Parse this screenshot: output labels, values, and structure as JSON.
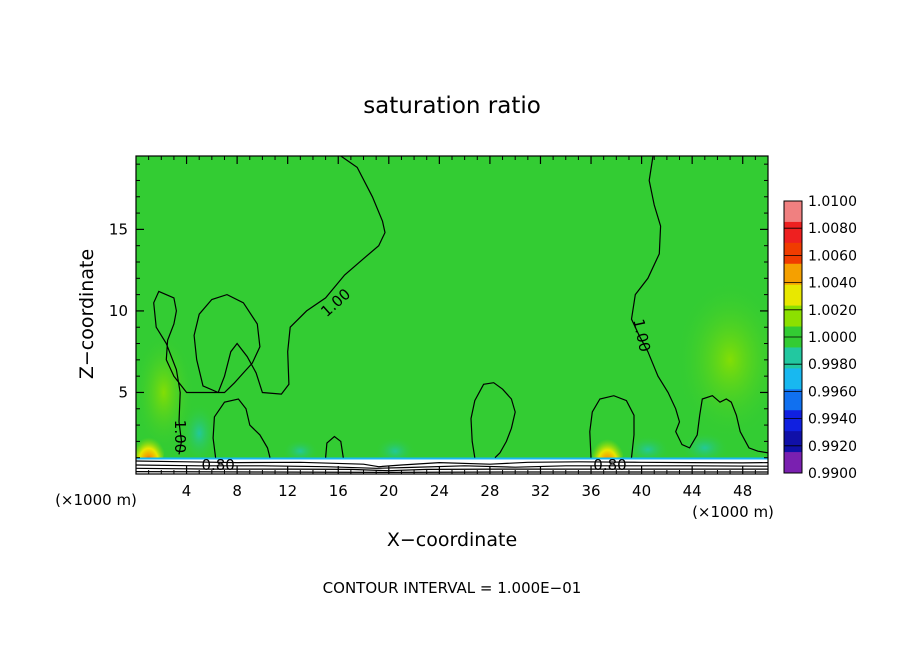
{
  "chart_data": {
    "type": "heatmap",
    "title": "saturation ratio",
    "xlabel": "X−coordinate",
    "ylabel": "Z−coordinate",
    "x_unit_left": "(×1000 m)",
    "x_unit_right": "(×1000 m)",
    "footer": "CONTOUR INTERVAL = 1.000E−01",
    "xlim": [
      0,
      50
    ],
    "ylim": [
      0,
      19.5
    ],
    "x_ticks": [
      4,
      8,
      12,
      16,
      20,
      24,
      28,
      32,
      36,
      40,
      44,
      48
    ],
    "x_tick_labels": [
      "4",
      "8",
      "12",
      "16",
      "20",
      "24",
      "28",
      "32",
      "36",
      "40",
      "44",
      "48"
    ],
    "y_ticks": [
      5,
      10,
      15
    ],
    "y_tick_labels": [
      "5",
      "10",
      "15"
    ],
    "background_value": 1.0,
    "colorbar": {
      "levels": [
        "1.0100",
        "1.0080",
        "1.0060",
        "1.0040",
        "1.0020",
        "1.0000",
        "0.9980",
        "0.9960",
        "0.9940",
        "0.9920",
        "0.9900"
      ],
      "colors": [
        "#f08080",
        "#ee2020",
        "#f03c00",
        "#f5a000",
        "#e8e800",
        "#8ce000",
        "#33cc33",
        "#22c8a0",
        "#18b8f0",
        "#1070f0",
        "#1020e0",
        "#1010a8",
        "#7a20b0"
      ]
    },
    "contours": [
      {
        "level": 1.0,
        "label": "1.00",
        "points": [
          [
            16.2,
            19.5
          ],
          [
            17.5,
            18.8
          ],
          [
            18.7,
            17.0
          ],
          [
            19.5,
            15.5
          ],
          [
            19.7,
            14.8
          ],
          [
            19.2,
            14.0
          ],
          [
            18.0,
            13.2
          ],
          [
            16.5,
            12.2
          ],
          [
            15.0,
            10.8
          ],
          [
            13.5,
            10.0
          ],
          [
            12.2,
            9.0
          ],
          [
            12.0,
            7.5
          ],
          [
            12.1,
            5.5
          ],
          [
            11.5,
            4.9
          ],
          [
            10.0,
            5.0
          ],
          [
            9.5,
            6.2
          ],
          [
            8.8,
            7.2
          ],
          [
            8.0,
            8.0
          ],
          [
            7.5,
            7.5
          ],
          [
            7.0,
            6.0
          ],
          [
            6.5,
            5.0
          ],
          [
            5.3,
            5.4
          ],
          [
            4.8,
            7.0
          ],
          [
            4.6,
            8.5
          ],
          [
            5.0,
            9.8
          ],
          [
            6.0,
            10.7
          ],
          [
            7.2,
            11.0
          ],
          [
            8.5,
            10.5
          ],
          [
            9.6,
            9.2
          ],
          [
            9.8,
            7.8
          ],
          [
            9.2,
            6.8
          ],
          [
            8.5,
            6.2
          ],
          [
            7.8,
            5.6
          ],
          [
            7.0,
            5.0
          ],
          [
            4.0,
            5.0
          ],
          [
            3.0,
            6.0
          ],
          [
            2.4,
            7.0
          ],
          [
            2.5,
            8.2
          ],
          [
            3.0,
            9.2
          ],
          [
            3.2,
            10.0
          ],
          [
            3.0,
            10.8
          ],
          [
            1.8,
            11.2
          ],
          [
            1.4,
            10.5
          ],
          [
            1.6,
            9.0
          ],
          [
            2.4,
            8.0
          ],
          [
            3.2,
            6.4
          ],
          [
            3.5,
            5.0
          ],
          [
            3.4,
            3.2
          ],
          [
            3.6,
            2.0
          ],
          [
            3.4,
            1.2
          ]
        ]
      },
      {
        "level": 1.0,
        "label": "",
        "points": [
          [
            40.9,
            19.5
          ],
          [
            40.6,
            18.0
          ],
          [
            41.0,
            16.5
          ],
          [
            41.5,
            15.2
          ],
          [
            41.4,
            13.5
          ],
          [
            40.5,
            12.0
          ],
          [
            39.5,
            11.0
          ],
          [
            39.2,
            9.5
          ],
          [
            39.8,
            8.5
          ],
          [
            40.5,
            7.5
          ],
          [
            41.3,
            6.0
          ],
          [
            42.1,
            5.0
          ],
          [
            42.7,
            4.0
          ],
          [
            43.0,
            3.2
          ],
          [
            42.7,
            2.6
          ],
          [
            43.2,
            1.8
          ],
          [
            43.8,
            1.6
          ],
          [
            44.4,
            2.4
          ],
          [
            44.6,
            3.6
          ],
          [
            44.8,
            4.6
          ],
          [
            45.6,
            4.8
          ],
          [
            46.2,
            4.4
          ],
          [
            46.7,
            4.6
          ],
          [
            47.1,
            4.4
          ],
          [
            47.5,
            3.6
          ],
          [
            47.8,
            2.6
          ],
          [
            48.5,
            1.6
          ],
          [
            49.2,
            1.4
          ],
          [
            50.0,
            1.3
          ]
        ]
      },
      {
        "level": 1.0,
        "label": "",
        "points": [
          [
            6.3,
            1.0
          ],
          [
            6.1,
            2.2
          ],
          [
            6.2,
            3.5
          ],
          [
            7.0,
            4.4
          ],
          [
            8.1,
            4.6
          ],
          [
            8.7,
            4.0
          ],
          [
            9.0,
            3.0
          ],
          [
            9.8,
            2.4
          ],
          [
            10.4,
            1.6
          ],
          [
            10.6,
            1.0
          ]
        ]
      },
      {
        "level": 1.0,
        "label": "",
        "points": [
          [
            15.0,
            1.0
          ],
          [
            15.1,
            1.9
          ],
          [
            15.7,
            2.3
          ],
          [
            16.2,
            2.0
          ],
          [
            16.4,
            1.0
          ]
        ]
      },
      {
        "level": 1.0,
        "label": "",
        "points": [
          [
            26.8,
            1.0
          ],
          [
            26.6,
            2.0
          ],
          [
            26.5,
            3.4
          ],
          [
            26.8,
            4.5
          ],
          [
            27.5,
            5.5
          ],
          [
            28.3,
            5.6
          ],
          [
            29.0,
            5.2
          ],
          [
            29.7,
            4.6
          ],
          [
            30.0,
            3.8
          ],
          [
            29.7,
            2.8
          ],
          [
            29.3,
            2.0
          ],
          [
            28.8,
            1.3
          ],
          [
            28.4,
            1.0
          ]
        ]
      },
      {
        "level": 1.0,
        "label": "",
        "points": [
          [
            36.0,
            1.0
          ],
          [
            35.9,
            2.6
          ],
          [
            36.1,
            3.8
          ],
          [
            36.7,
            4.6
          ],
          [
            37.8,
            4.8
          ],
          [
            38.8,
            4.5
          ],
          [
            39.4,
            3.6
          ],
          [
            39.4,
            2.4
          ],
          [
            39.2,
            1.0
          ]
        ]
      },
      {
        "level": 0.8,
        "label": "0.80",
        "points": [
          [
            0.0,
            0.8
          ],
          [
            4.0,
            0.75
          ],
          [
            8.0,
            0.7
          ],
          [
            13.0,
            0.72
          ],
          [
            18.0,
            0.6
          ],
          [
            19.2,
            0.45
          ],
          [
            21.0,
            0.55
          ],
          [
            24.0,
            0.7
          ],
          [
            28.0,
            0.6
          ],
          [
            31.0,
            0.72
          ],
          [
            35.0,
            0.75
          ],
          [
            40.0,
            0.72
          ],
          [
            44.0,
            0.7
          ],
          [
            48.0,
            0.68
          ],
          [
            50.0,
            0.7
          ]
        ]
      },
      {
        "level": 0.7,
        "label": "",
        "points": [
          [
            0.0,
            0.55
          ],
          [
            5.0,
            0.5
          ],
          [
            10.0,
            0.5
          ],
          [
            15.0,
            0.45
          ],
          [
            19.0,
            0.35
          ],
          [
            21.5,
            0.4
          ],
          [
            26.0,
            0.5
          ],
          [
            30.0,
            0.42
          ],
          [
            34.0,
            0.5
          ],
          [
            39.0,
            0.5
          ],
          [
            44.0,
            0.5
          ],
          [
            50.0,
            0.48
          ]
        ]
      },
      {
        "level": 0.6,
        "label": "",
        "points": [
          [
            0.0,
            0.35
          ],
          [
            6.0,
            0.3
          ],
          [
            12.0,
            0.3
          ],
          [
            17.0,
            0.28
          ],
          [
            20.0,
            0.2
          ],
          [
            23.0,
            0.28
          ],
          [
            29.0,
            0.3
          ],
          [
            35.0,
            0.3
          ],
          [
            41.0,
            0.3
          ],
          [
            50.0,
            0.3
          ]
        ]
      },
      {
        "level": 0.5,
        "label": "",
        "points": [
          [
            0.0,
            0.15
          ],
          [
            10.0,
            0.12
          ],
          [
            20.0,
            0.1
          ],
          [
            30.0,
            0.12
          ],
          [
            40.0,
            0.12
          ],
          [
            50.0,
            0.12
          ]
        ]
      }
    ],
    "contour_label_positions": [
      {
        "text": "1.00",
        "x": 15.8,
        "y": 10.5,
        "angle": -42
      },
      {
        "text": "1.00",
        "x": 40.0,
        "y": 8.5,
        "angle": 78
      },
      {
        "text": "1.00",
        "x": 3.5,
        "y": 2.3,
        "angle": 90
      },
      {
        "text": "0.80",
        "x": 6.5,
        "y": 0.55,
        "angle": 0
      },
      {
        "text": "0.80",
        "x": 37.5,
        "y": 0.55,
        "angle": 0
      }
    ],
    "hotspots": [
      {
        "x": 1.0,
        "y": 1.2,
        "peak": 1.009
      },
      {
        "x": 37.3,
        "y": 1.1,
        "peak": 1.007
      }
    ]
  }
}
